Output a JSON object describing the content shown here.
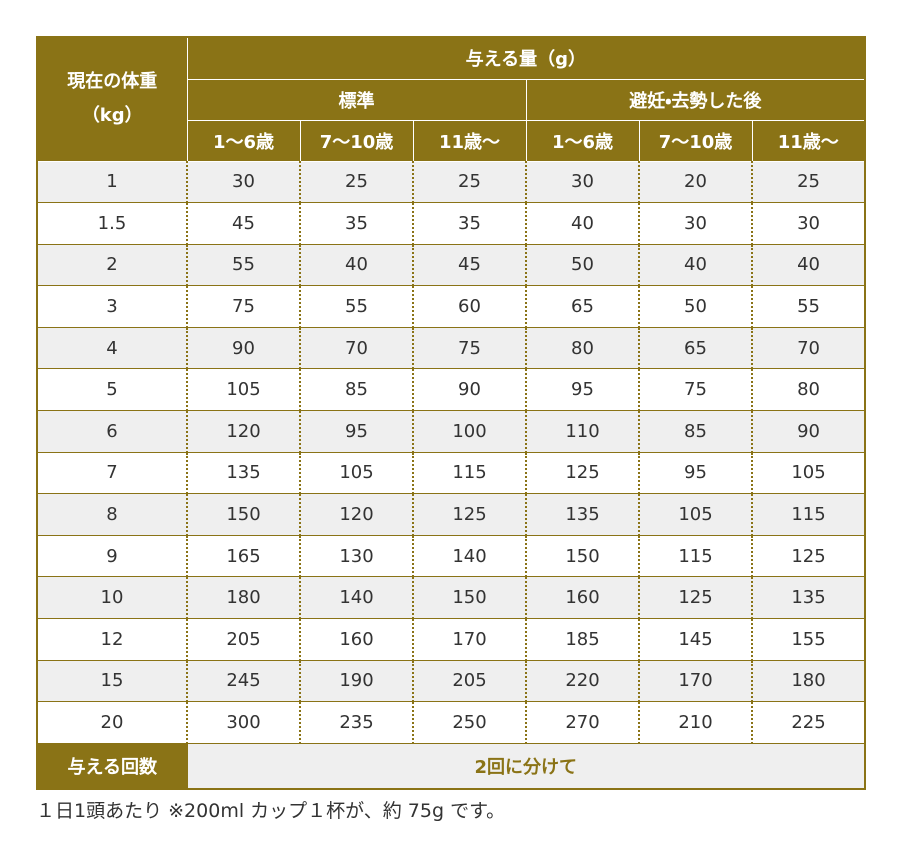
{
  "table": {
    "header": {
      "weight_label": "現在の体重",
      "weight_unit": "（kg）",
      "amount_label": "与える量（g）",
      "groups": [
        "標準",
        "避妊・去勢した後"
      ],
      "ages": [
        "1～6歳",
        "7～10歳",
        "11歳～"
      ]
    },
    "rows": [
      [
        1,
        30,
        25,
        25,
        30,
        20,
        25
      ],
      [
        1.5,
        45,
        35,
        35,
        40,
        30,
        30
      ],
      [
        2,
        55,
        40,
        45,
        50,
        40,
        40
      ],
      [
        3,
        75,
        55,
        60,
        65,
        50,
        55
      ],
      [
        4,
        90,
        70,
        75,
        80,
        65,
        70
      ],
      [
        5,
        105,
        85,
        90,
        95,
        75,
        80
      ],
      [
        6,
        120,
        95,
        100,
        110,
        85,
        90
      ],
      [
        7,
        135,
        105,
        115,
        125,
        95,
        105
      ],
      [
        8,
        150,
        120,
        125,
        135,
        105,
        115
      ],
      [
        9,
        165,
        130,
        140,
        150,
        115,
        125
      ],
      [
        10,
        180,
        140,
        150,
        160,
        125,
        135
      ],
      [
        12,
        205,
        160,
        170,
        185,
        145,
        155
      ],
      [
        15,
        245,
        190,
        205,
        220,
        170,
        180
      ],
      [
        20,
        300,
        235,
        250,
        270,
        210,
        225
      ]
    ],
    "footer": {
      "label": "与える回数",
      "value": "2回に分けて"
    },
    "note": "１日1頭あたり ※200ml カップ１杯が、約 75g です。"
  }
}
